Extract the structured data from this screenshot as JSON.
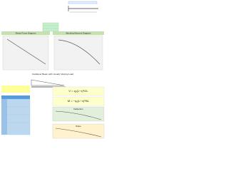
{
  "top": {
    "shear_title": "Shear Force Diagram",
    "moment_title": "Bending Moment Diagram"
  },
  "bottom": {
    "title": "Cantilever Beam with Linearly Varying Load",
    "shear_formula": "V = q₀(L−x)²/2L",
    "moment_formula": "M = −q₀(L−x)³/6L",
    "deflection_title": "Deflection",
    "slope_title": "Slope"
  }
}
